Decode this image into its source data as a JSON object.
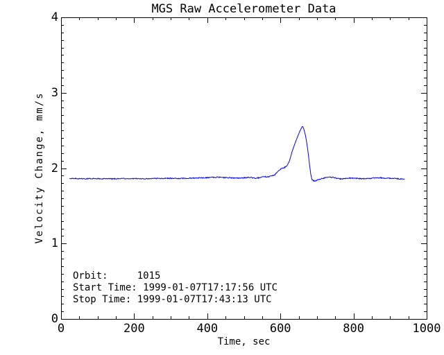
{
  "chart_data": {
    "type": "line",
    "title": "MGS Raw Accelerometer Data",
    "xlabel": "Time, sec",
    "ylabel": "Velocity Change, mm/s",
    "xlim": [
      0,
      1000
    ],
    "ylim": [
      0,
      4
    ],
    "x_ticks": [
      0,
      200,
      400,
      600,
      800,
      1000
    ],
    "y_ticks": [
      0,
      1,
      2,
      3,
      4
    ],
    "x_minor_step": 50,
    "y_minor_step": 0.1,
    "grid": false,
    "legend_position": "none",
    "line_color": "#0000ff",
    "axis_color": "#000000",
    "background_color": "#ffffff",
    "noise_amplitude_mm_s": 0.0065,
    "series": [
      {
        "name": "Velocity Change",
        "points": [
          [
            23,
            1.862
          ],
          [
            60,
            1.86
          ],
          [
            100,
            1.861
          ],
          [
            140,
            1.858
          ],
          [
            180,
            1.862
          ],
          [
            220,
            1.86
          ],
          [
            260,
            1.863
          ],
          [
            300,
            1.866
          ],
          [
            330,
            1.863
          ],
          [
            360,
            1.868
          ],
          [
            390,
            1.872
          ],
          [
            410,
            1.877
          ],
          [
            430,
            1.88
          ],
          [
            450,
            1.874
          ],
          [
            470,
            1.87
          ],
          [
            490,
            1.868
          ],
          [
            505,
            1.872
          ],
          [
            516,
            1.878
          ],
          [
            525,
            1.871
          ],
          [
            535,
            1.867
          ],
          [
            548,
            1.877
          ],
          [
            558,
            1.888
          ],
          [
            566,
            1.884
          ],
          [
            575,
            1.895
          ],
          [
            583,
            1.905
          ],
          [
            590,
            1.94
          ],
          [
            597,
            1.975
          ],
          [
            603,
            1.995
          ],
          [
            610,
            2.005
          ],
          [
            618,
            2.03
          ],
          [
            625,
            2.1
          ],
          [
            632,
            2.22
          ],
          [
            640,
            2.33
          ],
          [
            648,
            2.43
          ],
          [
            655,
            2.51
          ],
          [
            659,
            2.545
          ],
          [
            661,
            2.555
          ],
          [
            664,
            2.52
          ],
          [
            668,
            2.445
          ],
          [
            672,
            2.34
          ],
          [
            676,
            2.2
          ],
          [
            680,
            2.035
          ],
          [
            683,
            1.92
          ],
          [
            686,
            1.85
          ],
          [
            690,
            1.835
          ],
          [
            695,
            1.83
          ],
          [
            700,
            1.84
          ],
          [
            707,
            1.852
          ],
          [
            714,
            1.862
          ],
          [
            722,
            1.872
          ],
          [
            730,
            1.878
          ],
          [
            740,
            1.88
          ],
          [
            750,
            1.872
          ],
          [
            762,
            1.858
          ],
          [
            775,
            1.86
          ],
          [
            790,
            1.868
          ],
          [
            805,
            1.866
          ],
          [
            820,
            1.86
          ],
          [
            835,
            1.862
          ],
          [
            850,
            1.866
          ],
          [
            865,
            1.874
          ],
          [
            880,
            1.87
          ],
          [
            895,
            1.866
          ],
          [
            910,
            1.866
          ],
          [
            925,
            1.858
          ],
          [
            940,
            1.856
          ]
        ]
      }
    ]
  },
  "annotations": {
    "orbit_label": "Orbit:",
    "orbit_value": "1015",
    "start_time_label": "Start Time:",
    "start_time_value": "1999-01-07T17:17:56 UTC",
    "stop_time_label": "Stop Time:",
    "stop_time_value": "1999-01-07T17:43:13 UTC",
    "lines": [
      "Orbit:     1015",
      "Start Time: 1999-01-07T17:17:56 UTC",
      "Stop Time: 1999-01-07T17:43:13 UTC"
    ]
  }
}
